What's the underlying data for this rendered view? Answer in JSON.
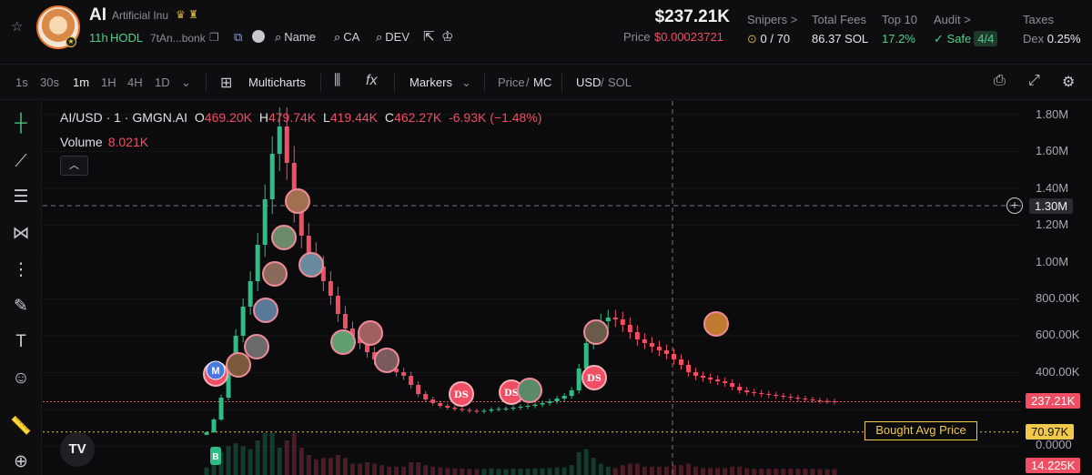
{
  "header": {
    "symbol": "AI",
    "name": "Artificial Inu",
    "age": "11h",
    "hodl": "HODL",
    "ca": "7tAn...bonk",
    "links": [
      {
        "label": "Name",
        "icon": "search-icon"
      },
      {
        "label": "CA",
        "icon": "search-icon"
      },
      {
        "label": "DEV",
        "icon": "search-icon"
      }
    ],
    "market_cap": "$237.21K",
    "price_label": "Price",
    "price_value": "$0.00023721",
    "stats": {
      "snipers": {
        "label": "Snipers >",
        "value": "0 / 70"
      },
      "fees": {
        "label": "Total Fees",
        "value": "86.37 SOL"
      },
      "top10": {
        "label": "Top 10",
        "value": "17.2%"
      },
      "audit": {
        "label": "Audit >",
        "value": "Safe",
        "badge": "4/4"
      },
      "taxes": {
        "label": "Taxes",
        "value_label": "Dex",
        "value": "0.25%"
      }
    }
  },
  "toolbar": {
    "timeframes": [
      "1s",
      "30s",
      "1m",
      "1H",
      "4H",
      "1D"
    ],
    "active_timeframe": "1m",
    "multicharts": "Multicharts",
    "markers": "Markers",
    "price_label": "Price",
    "mc_label": "MC",
    "usd_label": "USD",
    "sol_label": "SOL"
  },
  "chart": {
    "pair": "AI/USD · 1 · GMGN.AI",
    "ohlc": {
      "o_label": "O",
      "o": "469.20K",
      "h_label": "H",
      "h": "479.74K",
      "l_label": "L",
      "l": "419.44K",
      "c_label": "C",
      "c": "462.27K",
      "change": "-6.93K (−1.48%)"
    },
    "volume_label": "Volume",
    "volume_value": "8.021K",
    "crosshair_value": "1.30M",
    "current_price_tag": "237.21K",
    "avg_price_tag": "70.97K",
    "volume_tag": "14.225K",
    "bought_label": "Bought Avg Price",
    "marker_ds": "DS",
    "marker_m": "M",
    "marker_b": "B",
    "colors": {
      "up": "#2ebd85",
      "down": "#f04e63",
      "avg": "#f1c94a"
    }
  },
  "chart_data": {
    "type": "candlestick",
    "title": "AI/USD · 1 · GMGN.AI",
    "y_ticks": [
      "1.80M",
      "1.60M",
      "1.40M",
      "1.20M",
      "1.00M",
      "800.00K",
      "600.00K",
      "400.00K",
      "0.0000"
    ],
    "ylim": [
      0,
      1850000
    ],
    "series": [
      {
        "name": "",
        "values": [
          70000,
          140000,
          260000,
          420000,
          600000,
          760000,
          900000,
          1100000,
          1350000,
          1600000,
          1750000,
          1550000,
          1300000,
          1150000,
          1050000,
          980000,
          900000,
          820000,
          720000,
          640000,
          600000,
          560000,
          510000,
          470000,
          440000,
          420000,
          400000,
          380000,
          330000,
          280000,
          250000,
          230000,
          215000,
          205000,
          198000,
          192000,
          188000,
          185000,
          188000,
          195000,
          198000,
          200000,
          205000,
          210000,
          215000,
          222000,
          230000,
          240000,
          255000,
          270000,
          300000,
          420000,
          560000,
          640000,
          680000,
          700000,
          690000,
          660000,
          620000,
          580000,
          560000,
          540000,
          520000,
          500000,
          470000,
          440000,
          400000,
          380000,
          370000,
          360000,
          350000,
          340000,
          320000,
          300000,
          290000,
          285000,
          280000,
          275000,
          270000,
          265000,
          260000,
          255000,
          250000,
          245000,
          242000,
          240000,
          237210
        ]
      }
    ]
  }
}
